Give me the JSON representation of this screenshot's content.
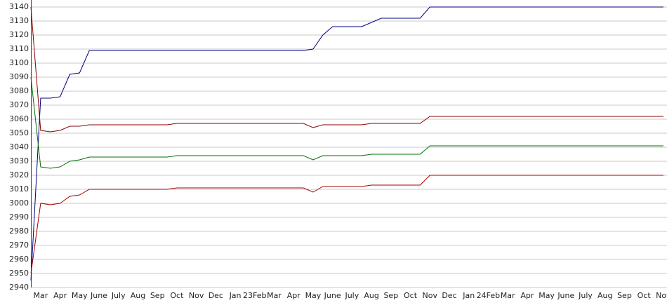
{
  "chart_data": {
    "type": "line",
    "categories": [
      null,
      "Mar",
      null,
      "Apr",
      null,
      "May",
      null,
      "June",
      null,
      "July",
      null,
      "Aug",
      null,
      "Sep",
      null,
      "Oct",
      null,
      "Nov",
      null,
      "Dec",
      null,
      "Jan",
      null,
      "23Feb",
      null,
      "Mar",
      null,
      "Apr",
      null,
      "May",
      null,
      "June",
      null,
      "July",
      null,
      "Aug",
      null,
      "Sep",
      null,
      "Oct",
      null,
      "Nov",
      null,
      "Dec",
      null,
      "Jan",
      null,
      "24Feb",
      null,
      "Mar",
      null,
      "Apr",
      null,
      "May",
      null,
      "June",
      null,
      "July",
      null,
      "Aug",
      null,
      "Sep",
      null,
      "Oct",
      null,
      "Nov"
    ],
    "series": [
      {
        "color": "#000080",
        "values": [
          2945,
          3075,
          3075,
          3076,
          3092,
          3093,
          3109,
          3109,
          3109,
          3109,
          3109,
          3109,
          3109,
          3109,
          3109,
          3109,
          3109,
          3109,
          3109,
          3109,
          3109,
          3109,
          3109,
          3109,
          3109,
          3109,
          3109,
          3109,
          3109,
          3110,
          3120,
          3126,
          3126,
          3126,
          3126,
          3129,
          3132,
          3132,
          3132,
          3132,
          3132,
          3140,
          3140,
          3140,
          3140,
          3140,
          3140,
          3140,
          3140,
          3140,
          3140,
          3140,
          3140,
          3140,
          3140,
          3140,
          3140,
          3140,
          3140,
          3140,
          3140,
          3140,
          3140,
          3140,
          3140,
          3140
        ]
      },
      {
        "color": "#8b0000",
        "values": [
          3140,
          3052,
          3051,
          3052,
          3055,
          3055,
          3056,
          3056,
          3056,
          3056,
          3056,
          3056,
          3056,
          3056,
          3056,
          3057,
          3057,
          3057,
          3057,
          3057,
          3057,
          3057,
          3057,
          3057,
          3057,
          3057,
          3057,
          3057,
          3057,
          3054,
          3056,
          3056,
          3056,
          3056,
          3056,
          3057,
          3057,
          3057,
          3057,
          3057,
          3057,
          3062,
          3062,
          3062,
          3062,
          3062,
          3062,
          3062,
          3062,
          3062,
          3062,
          3062,
          3062,
          3062,
          3062,
          3062,
          3062,
          3062,
          3062,
          3062,
          3062,
          3062,
          3062,
          3062,
          3062,
          3062
        ]
      },
      {
        "color": "#007000",
        "values": [
          3090,
          3026,
          3025,
          3026,
          3030,
          3031,
          3033,
          3033,
          3033,
          3033,
          3033,
          3033,
          3033,
          3033,
          3033,
          3034,
          3034,
          3034,
          3034,
          3034,
          3034,
          3034,
          3034,
          3034,
          3034,
          3034,
          3034,
          3034,
          3034,
          3031,
          3034,
          3034,
          3034,
          3034,
          3034,
          3035,
          3035,
          3035,
          3035,
          3035,
          3035,
          3041,
          3041,
          3041,
          3041,
          3041,
          3041,
          3041,
          3041,
          3041,
          3041,
          3041,
          3041,
          3041,
          3041,
          3041,
          3041,
          3041,
          3041,
          3041,
          3041,
          3041,
          3041,
          3041,
          3041,
          3041
        ]
      },
      {
        "color": "#a00000",
        "values": [
          2950,
          3000,
          2999,
          3000,
          3005,
          3006,
          3010,
          3010,
          3010,
          3010,
          3010,
          3010,
          3010,
          3010,
          3010,
          3011,
          3011,
          3011,
          3011,
          3011,
          3011,
          3011,
          3011,
          3011,
          3011,
          3011,
          3011,
          3011,
          3011,
          3008,
          3012,
          3012,
          3012,
          3012,
          3012,
          3013,
          3013,
          3013,
          3013,
          3013,
          3013,
          3020,
          3020,
          3020,
          3020,
          3020,
          3020,
          3020,
          3020,
          3020,
          3020,
          3020,
          3020,
          3020,
          3020,
          3020,
          3020,
          3020,
          3020,
          3020,
          3020,
          3020,
          3020,
          3020,
          3020,
          3020
        ]
      }
    ],
    "ylim": [
      2940,
      3140
    ],
    "yticks": [
      2940,
      2950,
      2960,
      2970,
      2980,
      2990,
      3000,
      3010,
      3020,
      3030,
      3040,
      3050,
      3060,
      3070,
      3080,
      3090,
      3100,
      3110,
      3120,
      3130,
      3140
    ],
    "grid": true
  }
}
